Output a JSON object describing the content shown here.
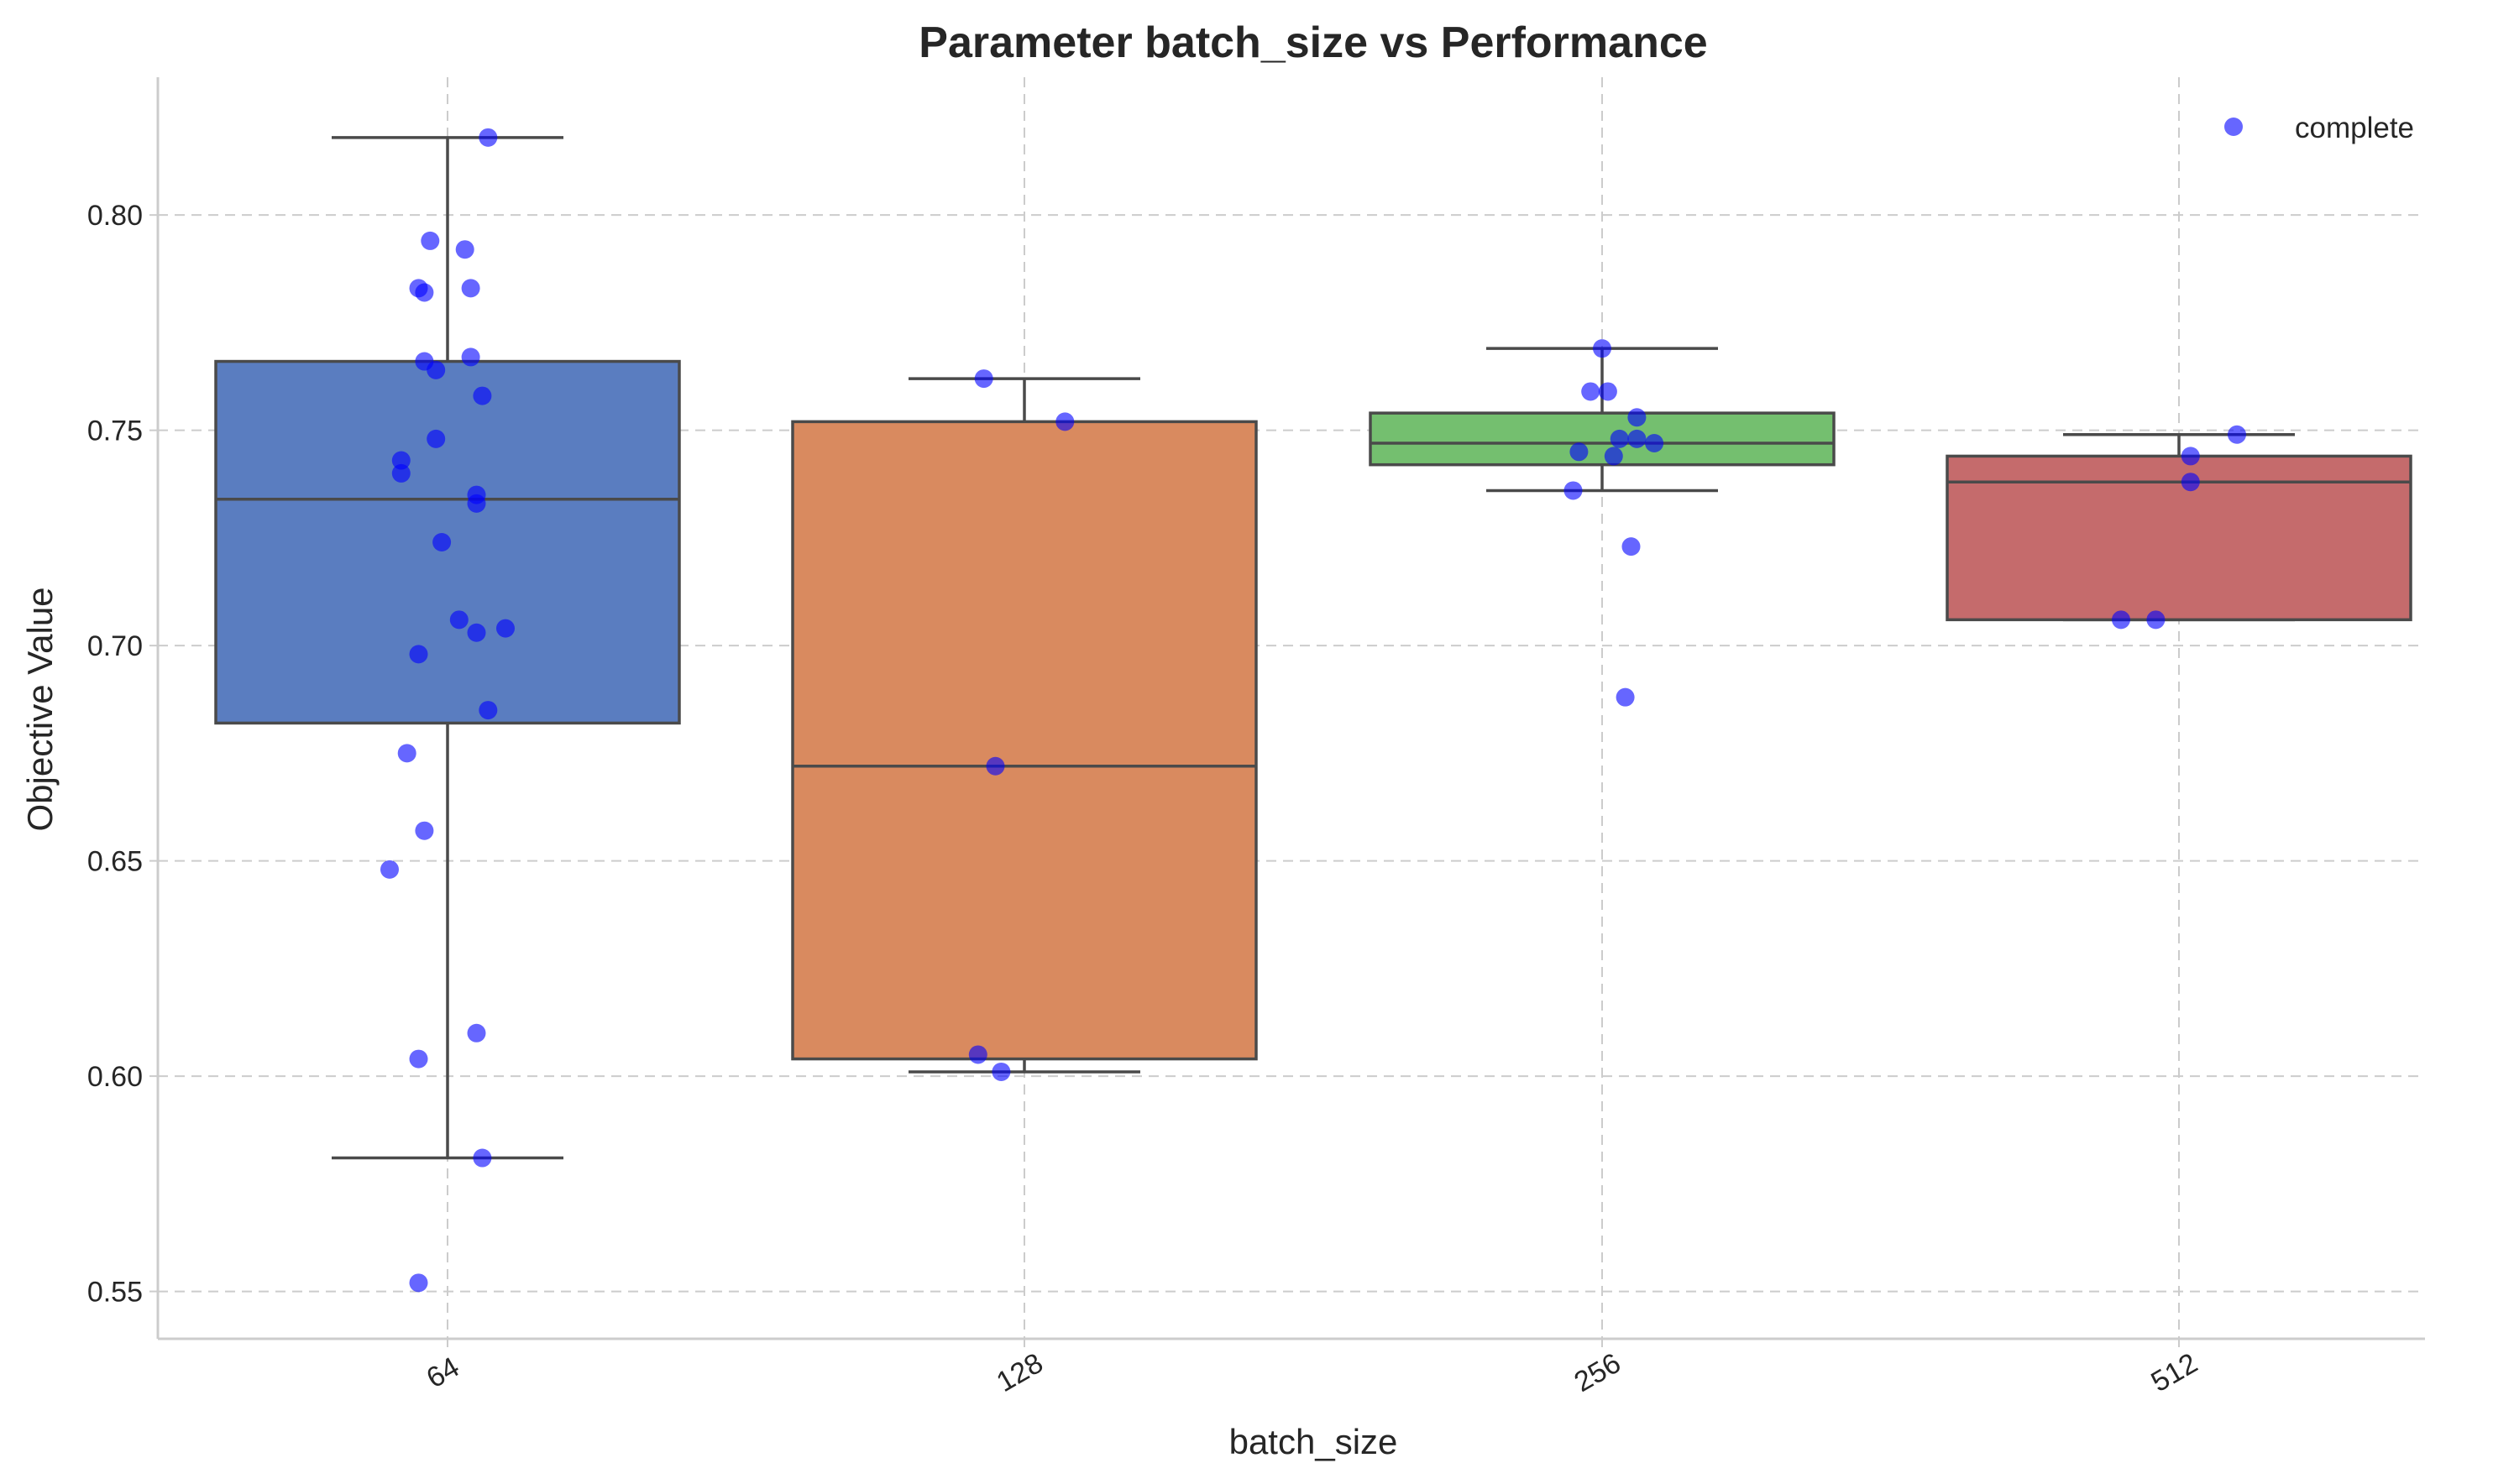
{
  "chart_data": {
    "type": "box",
    "title": "Parameter batch_size vs Performance",
    "xlabel": "batch_size",
    "ylabel": "Objective Value",
    "ylim": [
      0.539,
      0.832
    ],
    "yticks": [
      0.55,
      0.6,
      0.65,
      0.7,
      0.75,
      0.8
    ],
    "ytick_labels": [
      "0.55",
      "0.60",
      "0.65",
      "0.70",
      "0.75",
      "0.80"
    ],
    "grid": true,
    "legend": {
      "position": "top-right",
      "entries": [
        {
          "label": "complete",
          "color": "#0000ff"
        }
      ]
    },
    "point_color": "#0000ff",
    "categories": [
      "64",
      "128",
      "256",
      "512"
    ],
    "boxes": [
      {
        "category": "64",
        "color": "#5a7dc0",
        "q1": 0.682,
        "median": 0.734,
        "q3": 0.766,
        "whisker_low": 0.581,
        "whisker_high": 0.818
      },
      {
        "category": "128",
        "color": "#d98a5f",
        "q1": 0.604,
        "median": 0.672,
        "q3": 0.752,
        "whisker_low": 0.601,
        "whisker_high": 0.762
      },
      {
        "category": "256",
        "color": "#74bf6f",
        "q1": 0.742,
        "median": 0.747,
        "q3": 0.754,
        "whisker_low": 0.736,
        "whisker_high": 0.769
      },
      {
        "category": "512",
        "color": "#c56b6c",
        "q1": 0.706,
        "median": 0.738,
        "q3": 0.744,
        "whisker_low": 0.706,
        "whisker_high": 0.749
      }
    ],
    "points": [
      {
        "category": "64",
        "values": [
          [
            0.07,
            0.818
          ],
          [
            -0.03,
            0.794
          ],
          [
            0.03,
            0.792
          ],
          [
            -0.05,
            0.783
          ],
          [
            -0.04,
            0.782
          ],
          [
            0.04,
            0.783
          ],
          [
            0.04,
            0.767
          ],
          [
            -0.04,
            0.766
          ],
          [
            -0.02,
            0.764
          ],
          [
            0.06,
            0.758
          ],
          [
            -0.02,
            0.748
          ],
          [
            -0.08,
            0.743
          ],
          [
            -0.08,
            0.74
          ],
          [
            0.05,
            0.735
          ],
          [
            0.05,
            0.733
          ],
          [
            -0.01,
            0.724
          ],
          [
            0.02,
            0.706
          ],
          [
            0.1,
            0.704
          ],
          [
            0.05,
            0.703
          ],
          [
            -0.05,
            0.698
          ],
          [
            0.07,
            0.685
          ],
          [
            -0.07,
            0.675
          ],
          [
            -0.04,
            0.657
          ],
          [
            -0.1,
            0.648
          ],
          [
            0.05,
            0.61
          ],
          [
            -0.05,
            0.604
          ],
          [
            0.06,
            0.581
          ],
          [
            -0.05,
            0.552
          ]
        ]
      },
      {
        "category": "128",
        "values": [
          [
            -0.07,
            0.762
          ],
          [
            0.07,
            0.752
          ],
          [
            -0.05,
            0.672
          ],
          [
            -0.08,
            0.605
          ],
          [
            -0.04,
            0.601
          ]
        ]
      },
      {
        "category": "256",
        "values": [
          [
            0.0,
            0.769
          ],
          [
            0.01,
            0.759
          ],
          [
            -0.02,
            0.759
          ],
          [
            0.06,
            0.753
          ],
          [
            0.06,
            0.748
          ],
          [
            0.09,
            0.747
          ],
          [
            0.03,
            0.748
          ],
          [
            -0.04,
            0.745
          ],
          [
            0.02,
            0.744
          ],
          [
            -0.05,
            0.736
          ],
          [
            0.05,
            0.723
          ],
          [
            0.04,
            0.688
          ]
        ]
      },
      {
        "category": "512",
        "values": [
          [
            0.1,
            0.749
          ],
          [
            0.02,
            0.744
          ],
          [
            0.02,
            0.738
          ],
          [
            -0.1,
            0.706
          ],
          [
            -0.04,
            0.706
          ]
        ]
      }
    ]
  }
}
